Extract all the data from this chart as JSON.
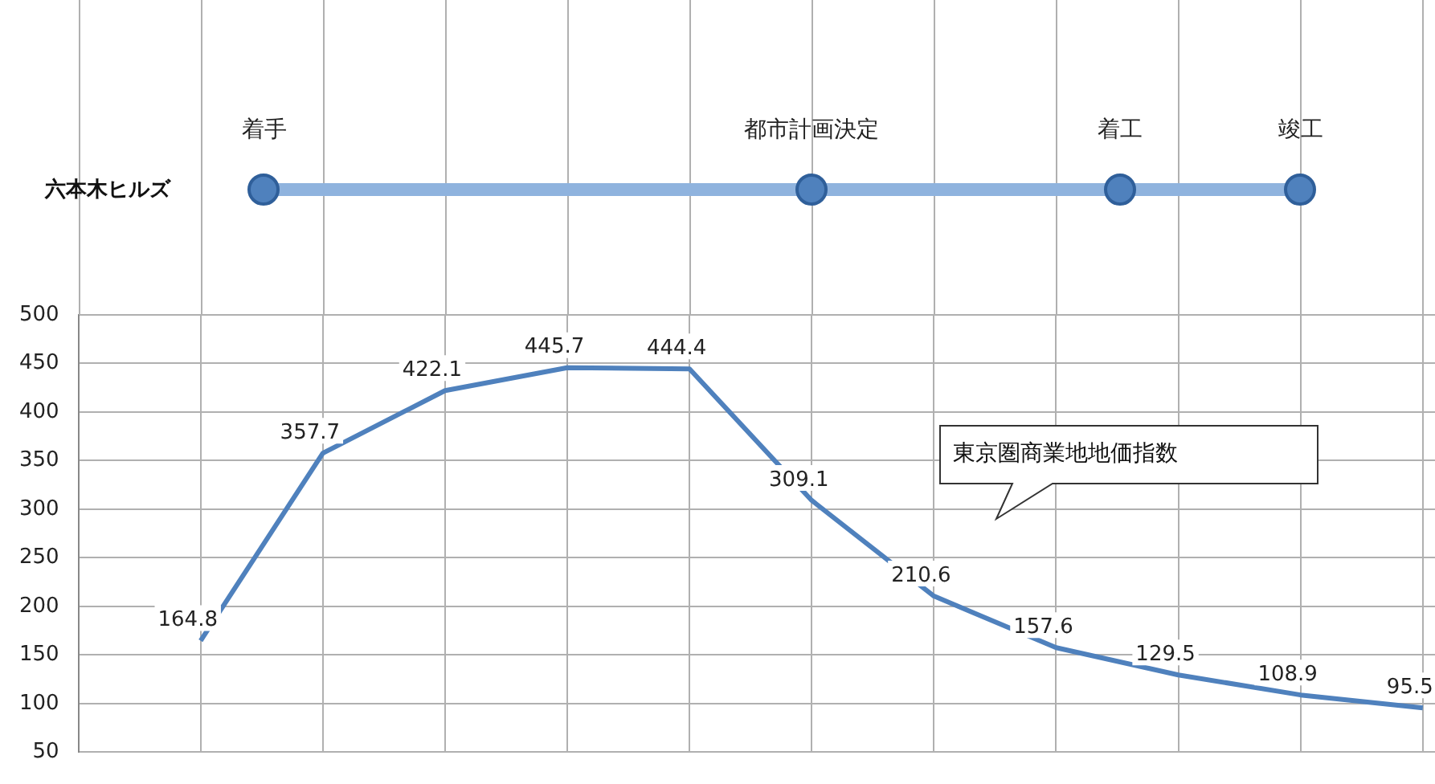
{
  "chart_data": {
    "type": "line",
    "categories": [
      null,
      null,
      null,
      null,
      null,
      null,
      null,
      null,
      null,
      null,
      null
    ],
    "series": [
      {
        "name": "東京圏商業地地価指数",
        "color": "#4f81bd",
        "values": [
          164.8,
          357.7,
          422.1,
          445.7,
          444.4,
          309.1,
          210.6,
          157.6,
          129.5,
          108.9,
          95.5
        ]
      }
    ],
    "ylim": [
      50,
      500
    ],
    "yticks": [
      50,
      100,
      150,
      200,
      250,
      300,
      350,
      400,
      450,
      500
    ],
    "grid": true,
    "legend": false,
    "marker": "none",
    "data_labels": true,
    "annotations": [
      "六本木ヒルズ",
      "着手",
      "都市計画決定",
      "着工",
      "竣工"
    ]
  }
}
